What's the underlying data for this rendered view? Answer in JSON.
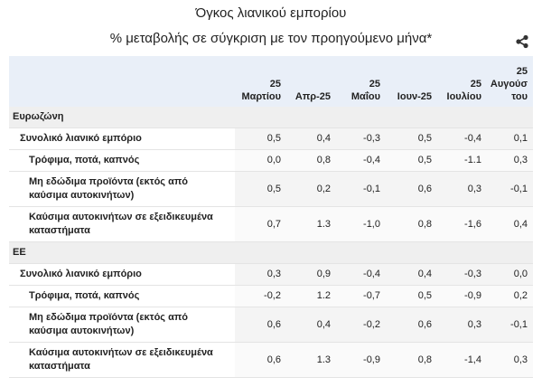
{
  "header": {
    "title": "Όγκος λιανικού εμπορίου",
    "subtitle": "% μεταβολής σε σύγκριση με τον προηγούμενο μήνα*"
  },
  "table": {
    "columns": [
      "25 Μαρτίου",
      "Απρ-25",
      "25 Μαΐου",
      "Ιουν-25",
      "25 Ιουλίου",
      "25 Αυγούστου"
    ],
    "groups": [
      {
        "name": "Ευρωζώνη",
        "rows": [
          {
            "label": "Συνολικό λιανικό εμπόριο",
            "values": [
              "0,5",
              "0,4",
              "-0,3",
              "0,5",
              "-0,4",
              "0,1"
            ]
          },
          {
            "label": "Τρόφιμα, ποτά, καπνός",
            "values": [
              "0,0",
              "0,8",
              "-0,4",
              "0,5",
              "-1.1",
              "0,3"
            ]
          },
          {
            "label": "Μη εδώδιμα προϊόντα (εκτός από καύσιμα αυτοκινήτων)",
            "values": [
              "0,5",
              "0,2",
              "-0,1",
              "0,6",
              "0,3",
              "-0,1"
            ]
          },
          {
            "label": "Καύσιμα αυτοκινήτων σε εξειδικευμένα καταστήματα",
            "values": [
              "0,7",
              "1.3",
              "-1,0",
              "0,8",
              "-1,6",
              "0,4"
            ]
          }
        ]
      },
      {
        "name": "ΕΕ",
        "rows": [
          {
            "label": "Συνολικό λιανικό εμπόριο",
            "values": [
              "0,3",
              "0,9",
              "-0,4",
              "0,4",
              "-0,3",
              "0,0"
            ]
          },
          {
            "label": "Τρόφιμα, ποτά, καπνός",
            "values": [
              "-0,2",
              "1.2",
              "-0,7",
              "0,5",
              "-0,9",
              "0,2"
            ]
          },
          {
            "label": "Μη εδώδιμα προϊόντα (εκτός από καύσιμα αυτοκινήτων)",
            "values": [
              "0,6",
              "0,4",
              "-0,2",
              "0,6",
              "0,3",
              "-0,1"
            ]
          },
          {
            "label": "Καύσιμα αυτοκινήτων σε εξειδικευμένα καταστήματα",
            "values": [
              "0,6",
              "1.3",
              "-0,9",
              "0,8",
              "-1,4",
              "0,3"
            ]
          }
        ]
      }
    ]
  }
}
